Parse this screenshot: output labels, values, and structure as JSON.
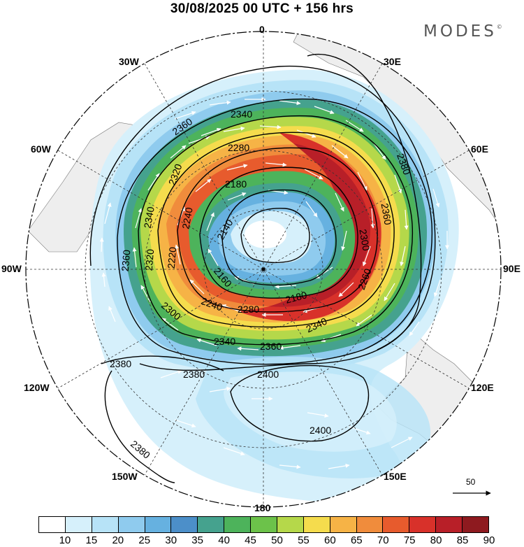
{
  "title": "30/08/2025  00 UTC  + 156 hrs",
  "brand": "MODES",
  "brand_mark": "©",
  "longitude_labels": {
    "lon_0": "0",
    "lon_30e": "30E",
    "lon_60e": "60E",
    "lon_90e": "90E",
    "lon_120e": "120E",
    "lon_150e": "150E",
    "lon_180": "180",
    "lon_150w": "150W",
    "lon_120w": "120W",
    "lon_90w": "90W",
    "lon_60w": "60W",
    "lon_30w": "30W"
  },
  "contour_labels": {
    "c2340_top": "2340",
    "c2360_top": "2360",
    "c2280_top": "2280",
    "c2320_left": "2320",
    "c2380_right": "2380",
    "c2240_left": "2240",
    "c2180_top": "2180",
    "c2340_left": "2340",
    "c2360_right": "2360",
    "c2140": "2140",
    "c2300_right": "2300",
    "c2220_left": "2220",
    "c2360_leftedge": "2360",
    "c2320_left2": "2320",
    "c2160": "2160",
    "c2260_right": "2260",
    "c2180_bottom": "2180",
    "c2240_bottom": "2240",
    "c2280_bottom": "2280",
    "c2300_left": "2300",
    "c2340_bottomright": "2340",
    "c2340_bottom": "2340",
    "c2360_bottom": "2360",
    "c2380_left": "2380",
    "c2380_bottom": "2380",
    "c2400_top": "2400",
    "c2400_bottom": "2400",
    "c2380_far": "2380"
  },
  "reference_vector": {
    "value": "50"
  },
  "colorbar": {
    "ticks": [
      "10",
      "15",
      "20",
      "25",
      "30",
      "35",
      "40",
      "45",
      "50",
      "55",
      "60",
      "65",
      "70",
      "75",
      "80",
      "85",
      "90"
    ],
    "colors": [
      "#ffffff",
      "#d6f0fb",
      "#b7e3f7",
      "#8fcbee",
      "#66b1e0",
      "#4c8fc9",
      "#45a28e",
      "#4db35b",
      "#6cc24a",
      "#b5d84a",
      "#f5dc4d",
      "#f6b346",
      "#f08c3c",
      "#e75b2d",
      "#d8312a",
      "#b81f28",
      "#8e1a1f"
    ]
  }
}
